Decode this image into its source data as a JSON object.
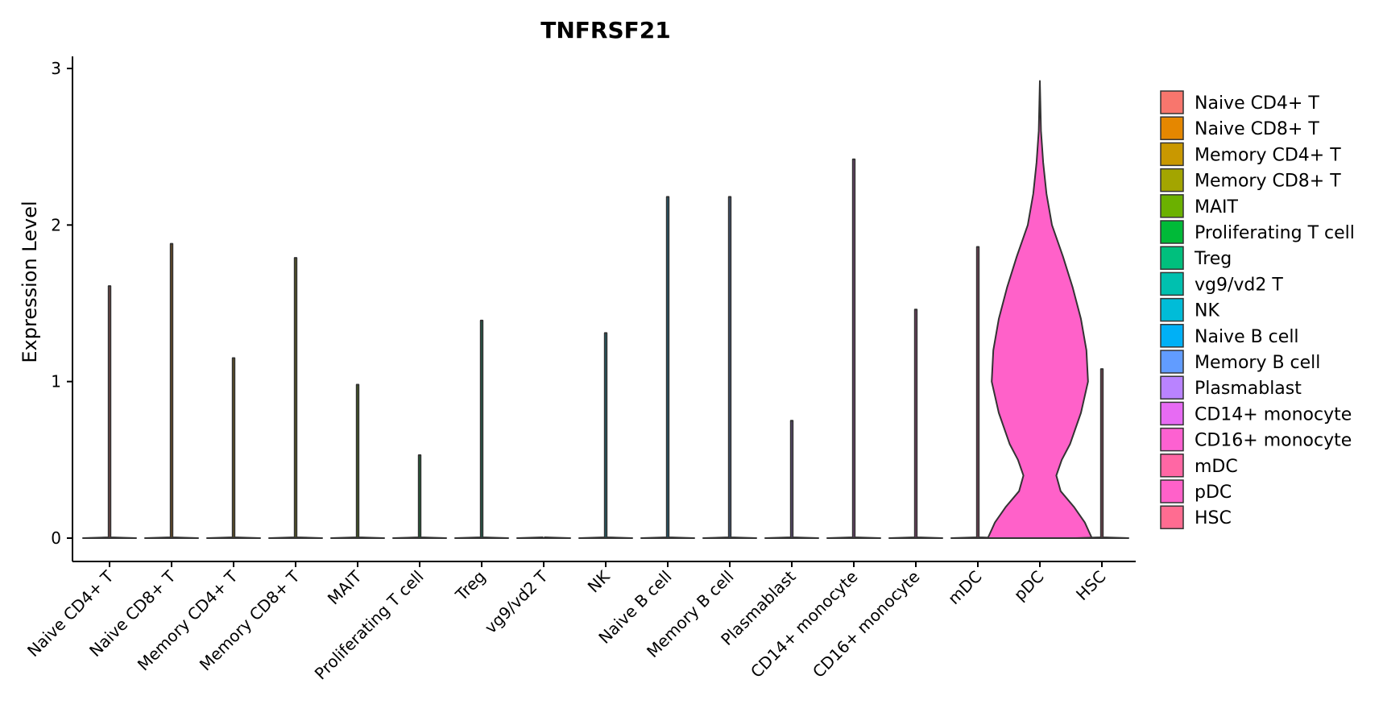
{
  "chart_data": {
    "type": "violin",
    "title": "TNFRSF21",
    "xlabel": "",
    "ylabel": "Expression Level",
    "ylim": [
      -0.15,
      3.05
    ],
    "yticks": [
      0,
      1,
      2,
      3
    ],
    "grid": false,
    "legend_position": "right",
    "categories": [
      "Naive CD4+ T",
      "Naive CD8+ T",
      "Memory CD4+ T",
      "Memory CD8+ T",
      "MAIT",
      "Proliferating T cell",
      "Treg",
      "vg9/vd2 T",
      "NK",
      "Naive B cell",
      "Memory B cell",
      "Plasmablast",
      "CD14+ monocyte",
      "CD16+ monocyte",
      "mDC",
      "pDC",
      "HSC"
    ],
    "colors": [
      "#F8766D",
      "#E58700",
      "#C99800",
      "#A3A500",
      "#6BB100",
      "#00BA38",
      "#00BF7D",
      "#00C0AF",
      "#00BCD8",
      "#00B0F6",
      "#619CFF",
      "#B983FF",
      "#E76BF3",
      "#FD61D1",
      "#FF67A4",
      "#FF61C9",
      "#FF6C91"
    ],
    "max_values": [
      1.61,
      1.88,
      1.15,
      1.79,
      0.98,
      0.53,
      1.39,
      0.0,
      1.31,
      2.18,
      2.18,
      0.75,
      2.42,
      1.46,
      1.86,
      2.92,
      1.08
    ],
    "pdc_density": {
      "y": [
        0.0,
        0.1,
        0.2,
        0.3,
        0.4,
        0.5,
        0.6,
        0.8,
        1.0,
        1.2,
        1.4,
        1.6,
        1.8,
        2.0,
        2.2,
        2.4,
        2.6,
        2.92
      ],
      "half_width": [
        0.95,
        0.82,
        0.62,
        0.38,
        0.3,
        0.4,
        0.55,
        0.75,
        0.88,
        0.85,
        0.75,
        0.6,
        0.42,
        0.22,
        0.12,
        0.06,
        0.02,
        0.0
      ]
    }
  }
}
